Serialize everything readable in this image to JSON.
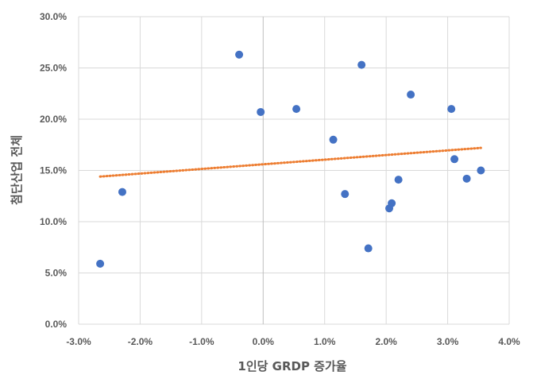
{
  "chart_data": {
    "type": "scatter",
    "title": "",
    "xlabel": "1인당 GRDP 증가율",
    "ylabel": "첨단산업 전체",
    "xlim": [
      -0.03,
      0.04
    ],
    "ylim": [
      0,
      0.3
    ],
    "x_ticks": [
      -0.03,
      -0.02,
      -0.01,
      0.0,
      0.01,
      0.02,
      0.03,
      0.04
    ],
    "x_tick_labels": [
      "-3.0%",
      "-2.0%",
      "-1.0%",
      "0.0%",
      "1.0%",
      "2.0%",
      "3.0%",
      "4.0%"
    ],
    "y_ticks": [
      0.0,
      0.05,
      0.1,
      0.15,
      0.2,
      0.25,
      0.3
    ],
    "y_tick_labels": [
      "0.0%",
      "5.0%",
      "10.0%",
      "15.0%",
      "20.0%",
      "25.0%",
      "30.0%"
    ],
    "grid": true,
    "legend": "none",
    "series": [
      {
        "color": "#4472C4",
        "points": [
          {
            "x": -0.0265,
            "y": 0.059
          },
          {
            "x": -0.0229,
            "y": 0.129
          },
          {
            "x": -0.0039,
            "y": 0.263
          },
          {
            "x": -0.0004,
            "y": 0.207
          },
          {
            "x": 0.0054,
            "y": 0.21
          },
          {
            "x": 0.0114,
            "y": 0.18
          },
          {
            "x": 0.0133,
            "y": 0.127
          },
          {
            "x": 0.016,
            "y": 0.253
          },
          {
            "x": 0.0171,
            "y": 0.074
          },
          {
            "x": 0.0205,
            "y": 0.113
          },
          {
            "x": 0.0209,
            "y": 0.118
          },
          {
            "x": 0.022,
            "y": 0.141
          },
          {
            "x": 0.024,
            "y": 0.224
          },
          {
            "x": 0.0306,
            "y": 0.21
          },
          {
            "x": 0.0311,
            "y": 0.161
          },
          {
            "x": 0.0331,
            "y": 0.142
          },
          {
            "x": 0.0354,
            "y": 0.15
          }
        ]
      }
    ],
    "trendline": {
      "type": "linear",
      "style": "dotted",
      "color": "#ED7D31",
      "x_start": -0.0265,
      "y_start": 0.144,
      "x_end": 0.0354,
      "y_end": 0.172
    }
  }
}
